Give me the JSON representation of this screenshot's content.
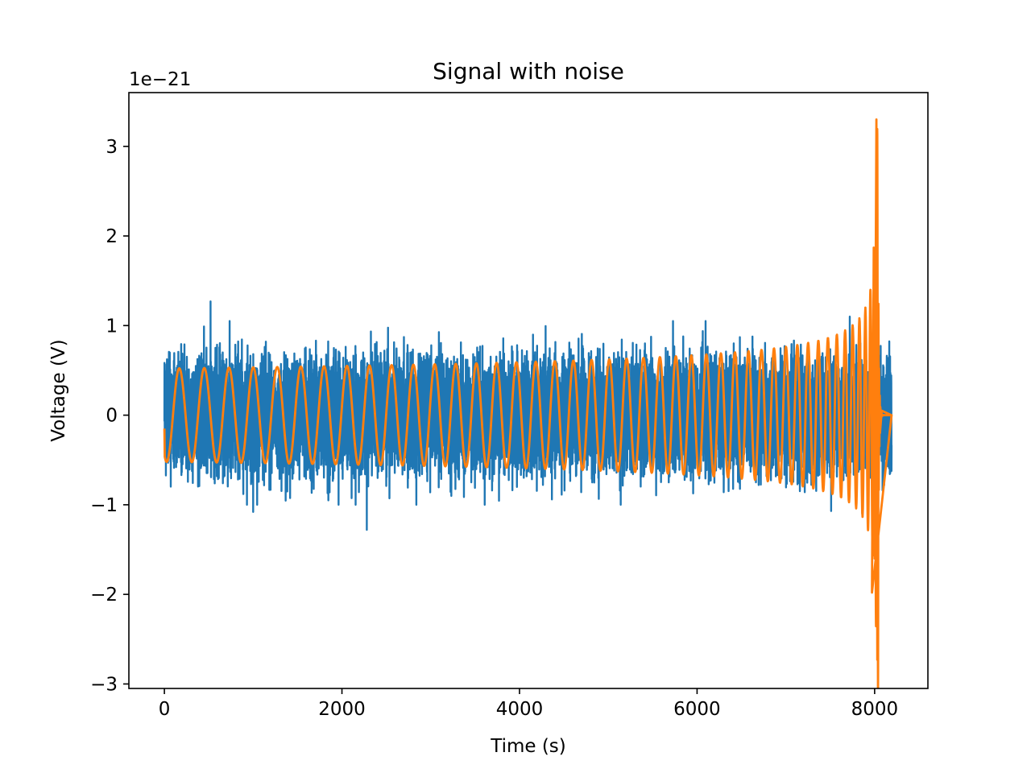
{
  "chart_data": {
    "type": "line",
    "title": "Signal with noise",
    "xlabel": "Time (s)",
    "ylabel": "Voltage (V)",
    "y_offset_label": "1e−21",
    "y_scale": 1e-21,
    "xlim": [
      -400,
      8600
    ],
    "ylim": [
      -3.05,
      3.6
    ],
    "x_ticks": [
      0,
      2000,
      4000,
      6000,
      8000
    ],
    "x_tick_labels": [
      "0",
      "2000",
      "4000",
      "6000",
      "8000"
    ],
    "y_ticks": [
      -3,
      -2,
      -1,
      0,
      1,
      2,
      3
    ],
    "y_tick_labels": [
      "−3",
      "−2",
      "−1",
      "0",
      "1",
      "2",
      "3"
    ],
    "grid": false,
    "series": [
      {
        "color": "#1f77b4",
        "x_range": [
          0,
          8191
        ],
        "n_points": 8192,
        "envelope": "noise, typical band ±0.7, peaks to about 1.27 near x=520 and down to about −1.28 near x=2280"
      },
      {
        "color": "#ff7f0e",
        "x_range": [
          0,
          8191
        ],
        "envelope": "chirp, amplitude grows from about 0.55 at start to about 1.2 near x=6650, then merger burst at x≈8000–8040 reaching +3.3 and −2.73, ringdown to 0 after x≈8080",
        "key_points": [
          {
            "x": 0,
            "y": -0.15
          },
          {
            "x": 6650,
            "y": 1.22
          },
          {
            "x": 6370,
            "y": -1.28
          },
          {
            "x": 7990,
            "y": 1.87
          },
          {
            "x": 7970,
            "y": -1.98
          },
          {
            "x": 8020,
            "y": 3.3
          },
          {
            "x": 8030,
            "y": -2.73
          },
          {
            "x": 8190,
            "y": 0.0
          }
        ]
      }
    ]
  }
}
